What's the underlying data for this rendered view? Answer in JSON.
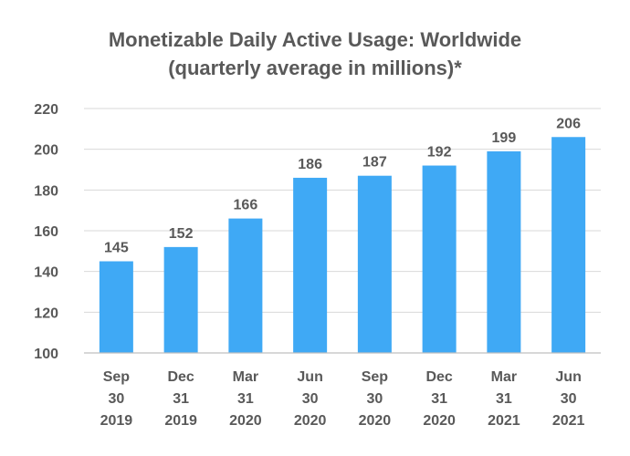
{
  "chart_data": {
    "type": "bar",
    "title": "Monetizable Daily Active Usage: Worldwide",
    "subtitle": "(quarterly average in millions)*",
    "categories": [
      [
        "Sep",
        "30",
        "2019"
      ],
      [
        "Dec",
        "31",
        "2019"
      ],
      [
        "Mar",
        "31",
        "2020"
      ],
      [
        "Jun",
        "30",
        "2020"
      ],
      [
        "Sep",
        "30",
        "2020"
      ],
      [
        "Dec",
        "31",
        "2020"
      ],
      [
        "Mar",
        "31",
        "2021"
      ],
      [
        "Jun",
        "30",
        "2021"
      ]
    ],
    "values": [
      145,
      152,
      166,
      186,
      187,
      192,
      199,
      206
    ],
    "data_labels": [
      "145",
      "152",
      "166",
      "186",
      "187",
      "192",
      "199",
      "206"
    ],
    "ylim": [
      100,
      220
    ],
    "yticks": [
      100,
      120,
      140,
      160,
      180,
      200,
      220
    ],
    "ytick_labels": [
      "100",
      "120",
      "140",
      "160",
      "180",
      "200",
      "220"
    ],
    "xlabel": "",
    "ylabel": "",
    "grid": true,
    "legend": "none",
    "bar_color": "#3fa9f5"
  }
}
